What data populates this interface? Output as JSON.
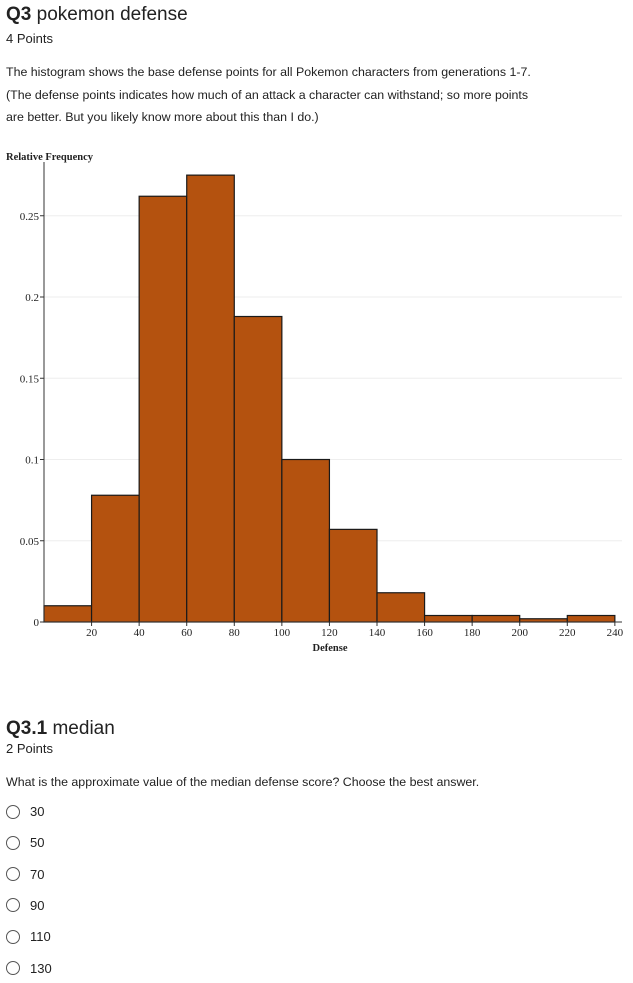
{
  "header": {
    "number": "Q3",
    "title": "pokemon defense",
    "points": "4 Points"
  },
  "description": [
    "The histogram shows the base defense points for all Pokemon characters from generations 1-7.",
    "(The defense points indicates how much of an attack a character can withstand; so more points",
    "are better. But you likely know more about this than I do.)"
  ],
  "chart_data": {
    "type": "histogram",
    "y_label": "Relative Frequency",
    "x_label": "Defense",
    "bins": [
      0,
      20,
      40,
      60,
      80,
      100,
      120,
      140,
      160,
      180,
      200,
      220,
      240
    ],
    "values": [
      0.01,
      0.078,
      0.262,
      0.275,
      0.188,
      0.1,
      0.057,
      0.018,
      0.004,
      0.004,
      0.002,
      0.004
    ],
    "color": "#b4520f",
    "xlim": [
      0,
      243
    ],
    "ylim": [
      0,
      0.28
    ],
    "xticks": [
      20,
      40,
      60,
      80,
      100,
      120,
      140,
      160,
      180,
      200,
      220,
      240
    ],
    "yticks": [
      0,
      0.05,
      0.1,
      0.15,
      0.2,
      0.25
    ],
    "grid": true
  },
  "question": {
    "number": "Q3.1",
    "title": "median",
    "points": "2 Points",
    "prompt": "What is the approximate value of the median defense score? Choose the best answer.",
    "options": [
      "30",
      "50",
      "70",
      "90",
      "110",
      "130"
    ]
  }
}
